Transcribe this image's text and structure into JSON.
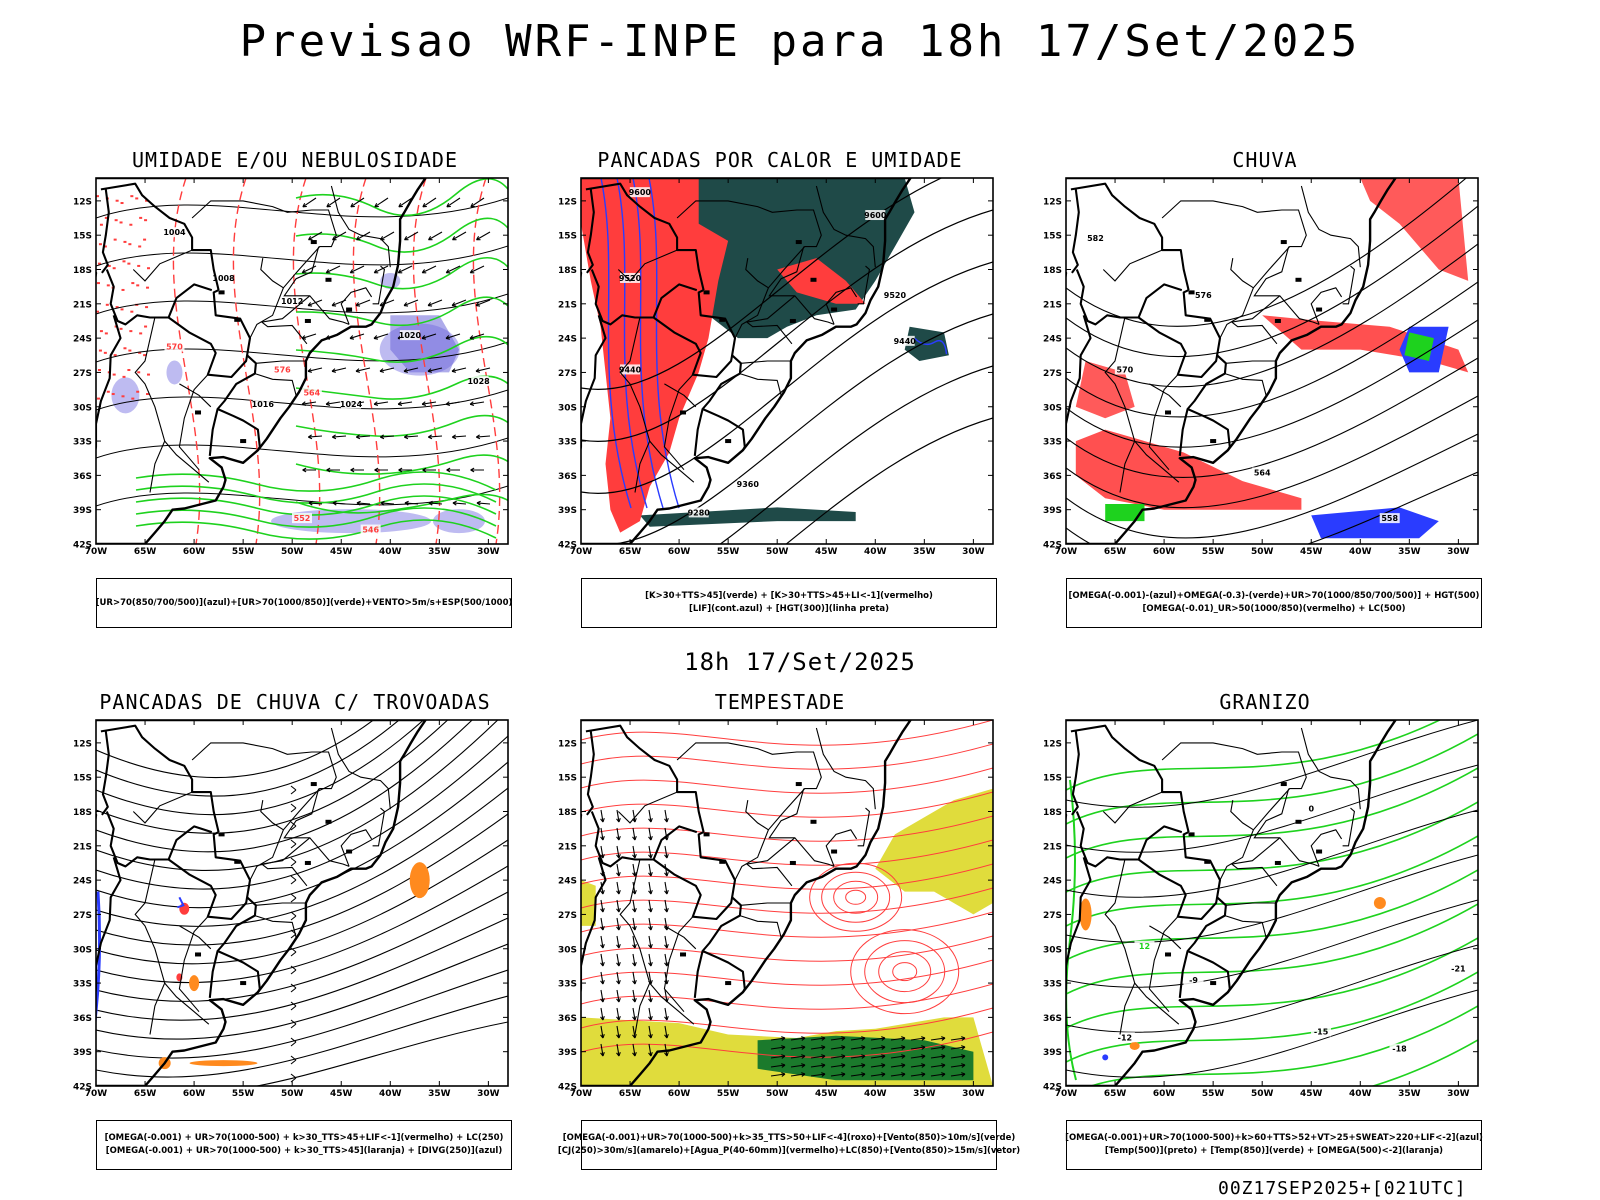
{
  "title": "Previsao WRF-INPE  para 18h 17/Set/2025",
  "mid_title": "18h 17/Set/2025",
  "footer": "00Z17SEP2025+[021UTC]",
  "axes": {
    "lat_labels": [
      "12S",
      "15S",
      "18S",
      "21S",
      "24S",
      "27S",
      "30S",
      "33S",
      "36S",
      "39S",
      "42S"
    ],
    "lon_labels": [
      "70W",
      "65W",
      "60W",
      "55W",
      "50W",
      "45W",
      "40W",
      "35W",
      "30W"
    ]
  },
  "colors": {
    "red": "#ff3d3d",
    "green": "#1ed21e",
    "blue": "#2a3cff",
    "lavender": "#b7b4f0",
    "darkteal": "#1f4a48",
    "yellow": "#e0dc3c",
    "orange": "#ff8a1e",
    "darkgreen": "#1b7a2c"
  },
  "panels": [
    {
      "title": "UMIDADE E/OU NEBULOSIDADE",
      "legend": [
        "[UR>70(850/700/500)](azul)+[UR>70(1000/850)](verde)+VENTO>5m/s+ESP(500/1000)"
      ],
      "labels": [
        {
          "t": "1004",
          "c": "black"
        },
        {
          "t": "1008",
          "c": "black"
        },
        {
          "t": "1012",
          "c": "black"
        },
        {
          "t": "1016",
          "c": "black"
        },
        {
          "t": "1020",
          "c": "black"
        },
        {
          "t": "1024",
          "c": "black"
        },
        {
          "t": "1028",
          "c": "black"
        },
        {
          "t": "570",
          "c": "red"
        },
        {
          "t": "576",
          "c": "red"
        },
        {
          "t": "564",
          "c": "red"
        },
        {
          "t": "552",
          "c": "red"
        },
        {
          "t": "546",
          "c": "red"
        }
      ]
    },
    {
      "title": "PANCADAS POR CALOR E UMIDADE",
      "legend": [
        "[K>30+TTS>45](verde) + [K>30+TTS>45+LI<-1](vermelho)",
        "[LIF](cont.azul) + [HGT(300)](linha preta)"
      ],
      "labels": [
        {
          "t": "9600",
          "c": "black"
        },
        {
          "t": "9520",
          "c": "black"
        },
        {
          "t": "9440",
          "c": "black"
        },
        {
          "t": "9360",
          "c": "black"
        },
        {
          "t": "9280",
          "c": "black"
        }
      ]
    },
    {
      "title": "CHUVA",
      "legend": [
        "[OMEGA(-0.001)-(azul)+OMEGA(-0.3)-(verde)+UR>70(1000/850/700/500)] + HGT(500)",
        "[OMEGA(-0.01)_UR>50(1000/850)(vermelho) + LC(500)"
      ],
      "labels": [
        {
          "t": "582",
          "c": "black"
        },
        {
          "t": "576",
          "c": "black"
        },
        {
          "t": "570",
          "c": "black"
        },
        {
          "t": "564",
          "c": "black"
        },
        {
          "t": "558",
          "c": "black"
        }
      ]
    },
    {
      "title": "PANCADAS DE CHUVA C/ TROVOADAS",
      "legend": [
        "[OMEGA(-0.001) + UR>70(1000-500) + k>30_TTS>45+LIF<-1](vermelho) + LC(250)",
        "[OMEGA(-0.001) + UR>70(1000-500) + k>30_TTS>45](laranja) + [DIVG(250)](azul)"
      ],
      "labels": []
    },
    {
      "title": "TEMPESTADE",
      "legend": [
        "[OMEGA(-0.001)+UR>70(1000-500)+k>35_TTS>50+LIF<-4](roxo)+[Vento(850)>10m/s](verde)",
        "[CJ(250)>30m/s](amarelo)+[Agua_P(40-60mm)](vermelho)+LC(850)+[Vento(850)>15m/s](vetor)"
      ],
      "labels": []
    },
    {
      "title": "GRANIZO",
      "legend": [
        "[OMEGA(-0.001)+UR>70(1000-500)+k>60+TTS>52+VT>25+SWEAT>220+LIF<-2](azul)",
        "[Temp(500)](preto) + [Temp(850)](verde) + [OMEGA(500)<-2](laranja)"
      ],
      "labels": [
        {
          "t": "-12",
          "c": "black"
        },
        {
          "t": "-15",
          "c": "black"
        },
        {
          "t": "-18",
          "c": "black"
        },
        {
          "t": "-21",
          "c": "black"
        },
        {
          "t": "-9",
          "c": "black"
        },
        {
          "t": "0",
          "c": "black"
        },
        {
          "t": "12",
          "c": "green"
        }
      ]
    }
  ]
}
